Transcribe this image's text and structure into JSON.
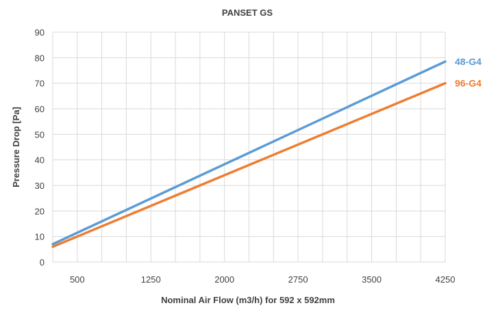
{
  "chart_data": {
    "type": "line",
    "title": "PANSET GS",
    "xlabel": "Nominal Air Flow (m3/h) for 592 x 592mm",
    "ylabel": "Pressure Drop [Pa]",
    "xlim": [
      250,
      4250
    ],
    "ylim": [
      0,
      90
    ],
    "x_ticks": [
      500,
      1250,
      2000,
      2750,
      3500,
      4250
    ],
    "y_ticks": [
      0,
      10,
      20,
      30,
      40,
      50,
      60,
      70,
      80,
      90
    ],
    "x_minor_step": 250,
    "grid": true,
    "legend": "series labels at line ends (right)",
    "series": [
      {
        "name": "48-G4",
        "color": "#5B9BD5",
        "x": [
          250,
          4250
        ],
        "y": [
          7,
          78.5
        ]
      },
      {
        "name": "96-G4",
        "color": "#ED7D31",
        "x": [
          250,
          4250
        ],
        "y": [
          6,
          70
        ]
      }
    ]
  }
}
